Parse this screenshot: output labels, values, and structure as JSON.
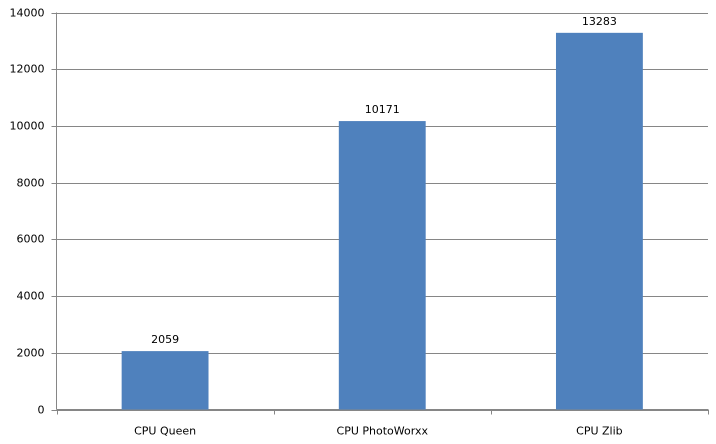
{
  "chart_data": {
    "type": "bar",
    "categories": [
      "CPU Queen",
      "CPU PhotoWorxx",
      "CPU Zlib"
    ],
    "values": [
      2059,
      10171,
      13283
    ],
    "color": "#4f81bd",
    "ylim": [
      0,
      14000
    ],
    "yticks": [
      0,
      2000,
      4000,
      6000,
      8000,
      10000,
      12000,
      14000
    ],
    "grid": true,
    "data_labels": true
  }
}
